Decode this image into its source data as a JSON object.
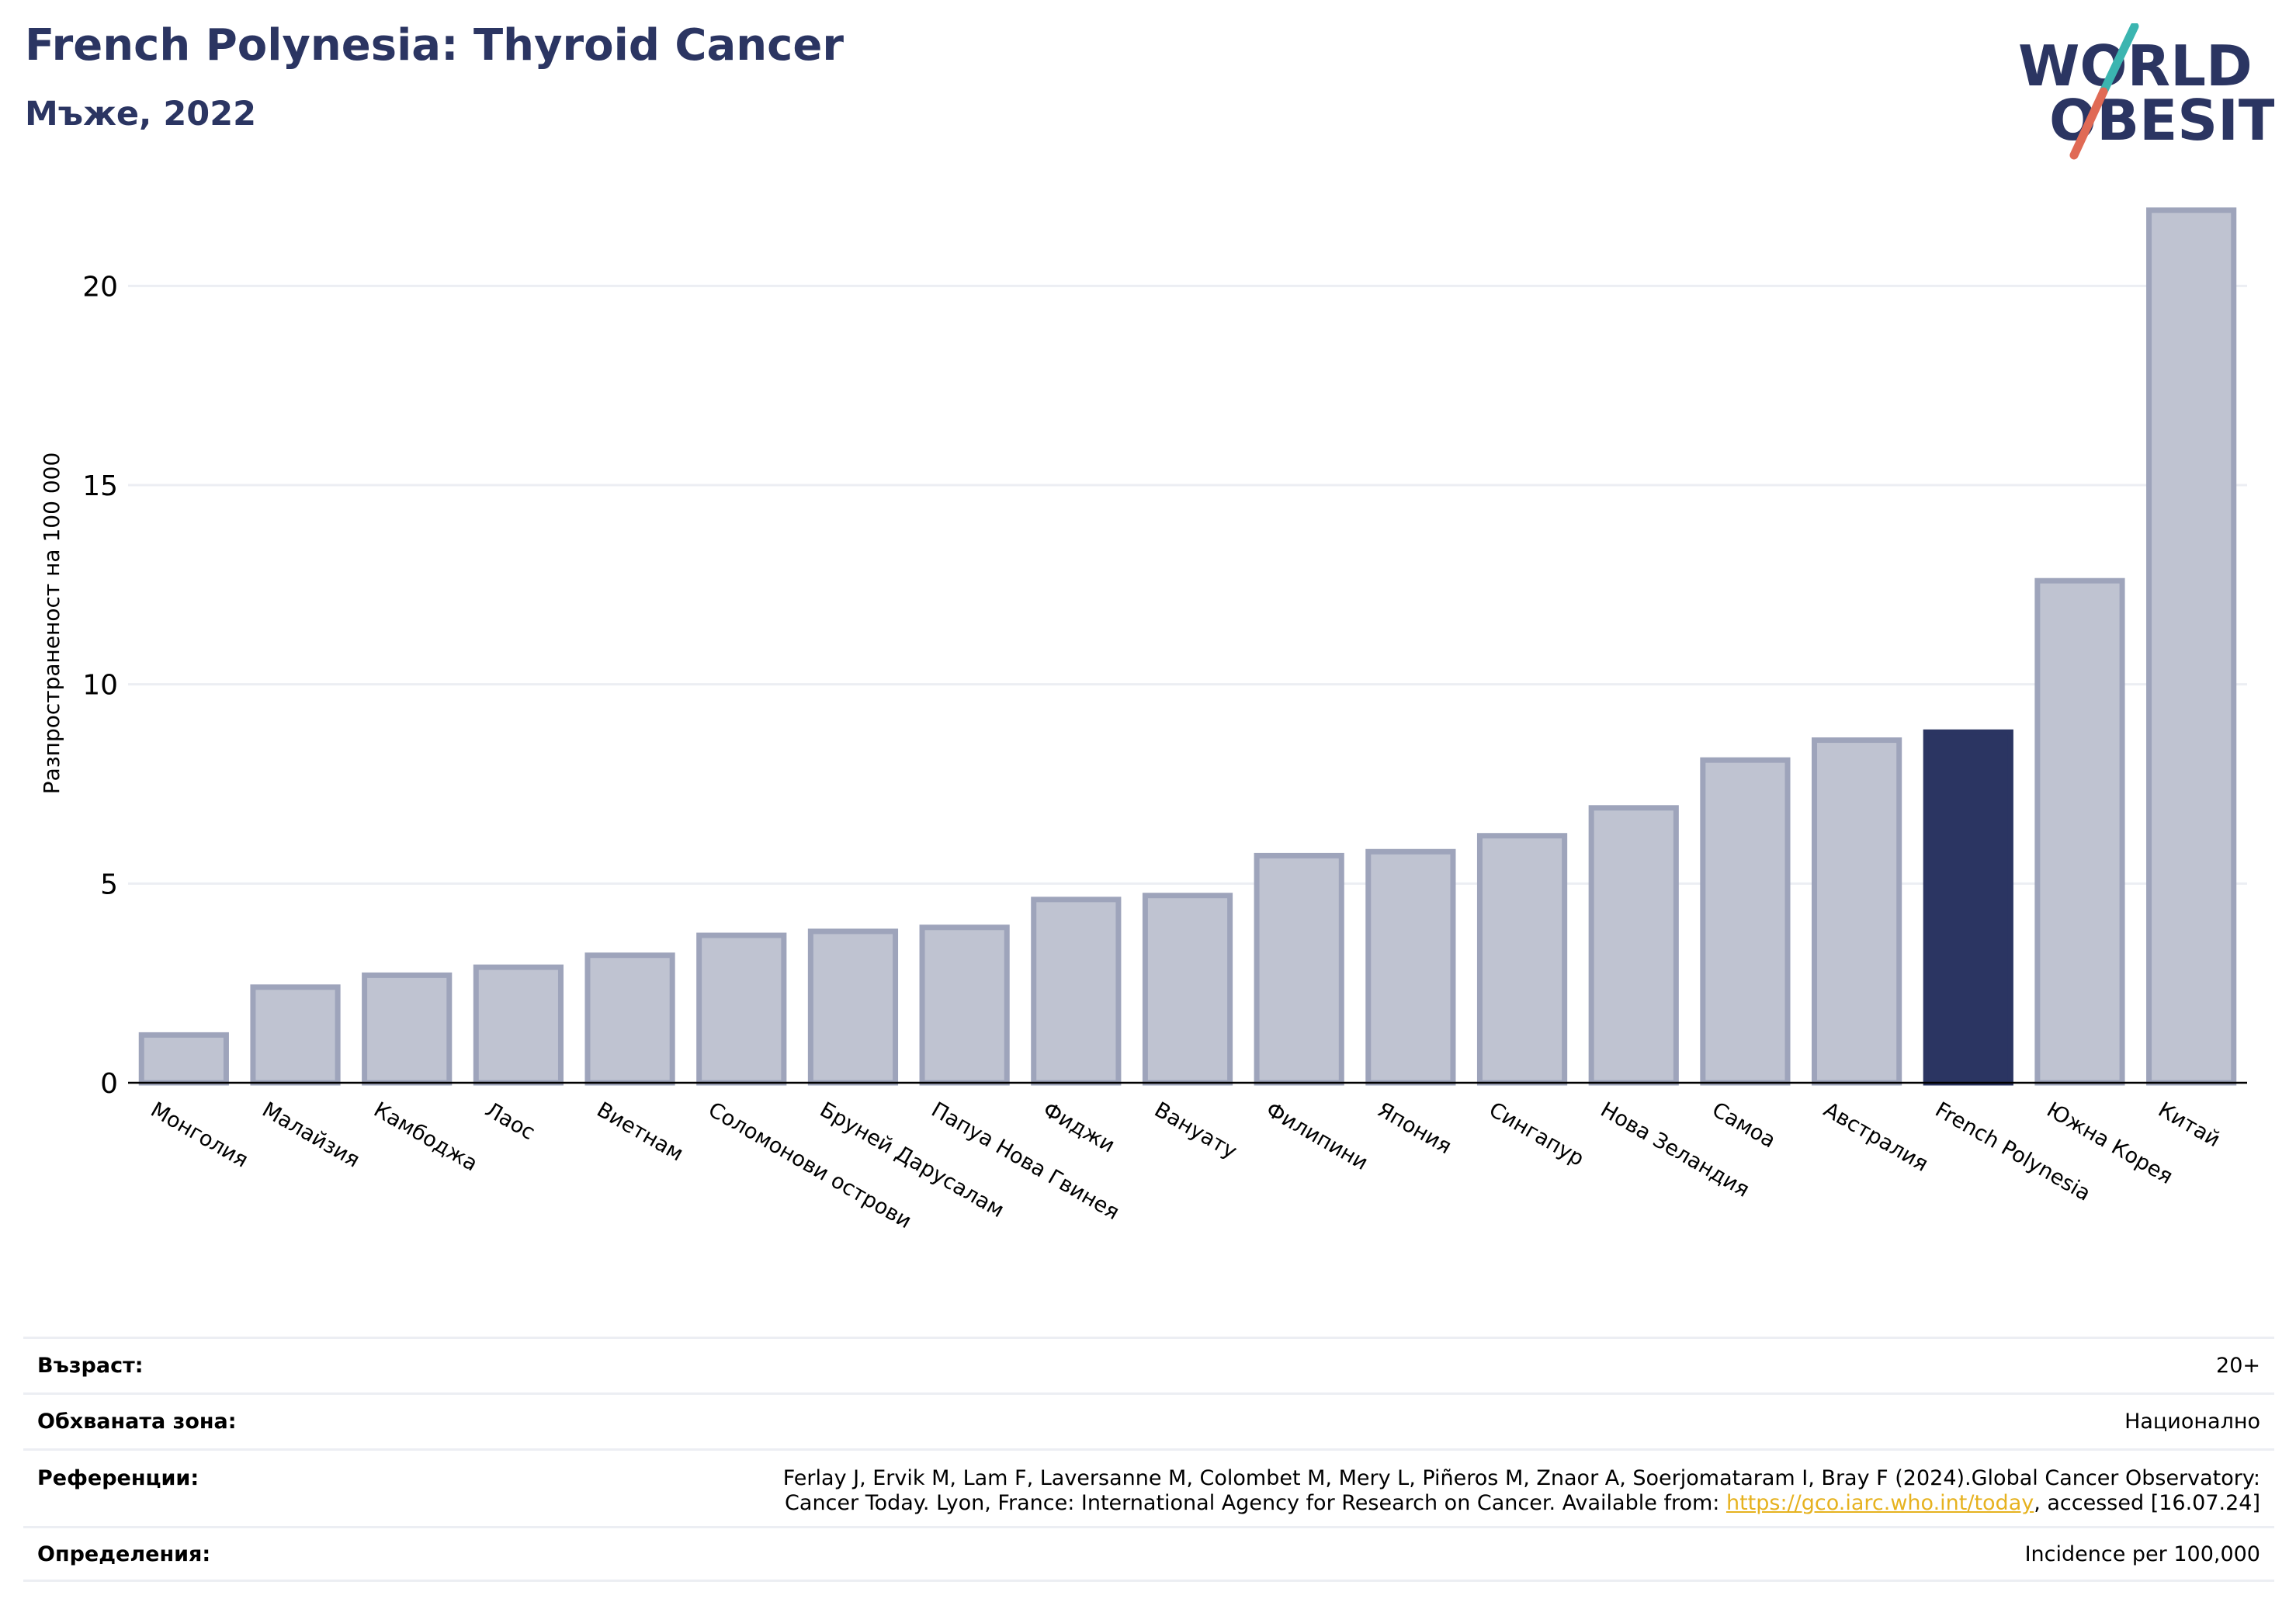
{
  "header": {
    "title": "French Polynesia: Thyroid Cancer",
    "subtitle": "Мъже, 2022"
  },
  "logo": {
    "line1": "WORLD",
    "line2": "OBESITY",
    "text_color": "#2b3562",
    "slash_color_top": "#3bb5b0",
    "slash_color_bottom": "#e06a55"
  },
  "colors": {
    "bar": "#bfc3d1",
    "bar_border": "#9ea4bb",
    "highlight": "#2b3562",
    "grid": "#eceef3",
    "axis": "#000000"
  },
  "chart_data": {
    "type": "bar",
    "ylabel": "Разпространеност  на 100 000",
    "ylim": [
      0,
      22.5
    ],
    "yticks": [
      0,
      5,
      10,
      15,
      20
    ],
    "grid": true,
    "highlight": "French Polynesia",
    "categories": [
      "Монголия",
      "Малайзия",
      "Камбоджа",
      "Лаос",
      "Виетнам",
      "Соломонови острови",
      "Бруней Дарусалам",
      "Папуа Нова Гвинея",
      "Фиджи",
      "Вануату",
      "Филипини",
      "Япония",
      "Сингапур",
      "Нова Зеландия",
      "Самоа",
      "Австралия",
      "French Polynesia",
      "Южна Корея",
      "Китай"
    ],
    "values": [
      1.2,
      2.4,
      2.7,
      2.9,
      3.2,
      3.7,
      3.8,
      3.9,
      4.6,
      4.7,
      5.7,
      5.8,
      6.2,
      6.9,
      8.1,
      8.6,
      8.8,
      12.6,
      21.9
    ]
  },
  "info": {
    "age_label": "Възраст:",
    "age_value": "20+",
    "zone_label": "Обхваната зона:",
    "zone_value": "Национално",
    "ref_label": "Референции:",
    "ref_line1": "Ferlay J, Ervik M, Lam F, Laversanne M, Colombet M, Mery L, Piñeros M, Znaor A, Soerjomataram I, Bray F (2024).Global Cancer Observatory:",
    "ref_line2_pre": "Cancer Today. Lyon, France: International Agency for Research on Cancer. Available from: ",
    "ref_link": "https://gco.iarc.who.int/today",
    "ref_line2_post": ", accessed [16.07.24]",
    "def_label": "Определения:",
    "def_value": "Incidence per 100,000"
  }
}
